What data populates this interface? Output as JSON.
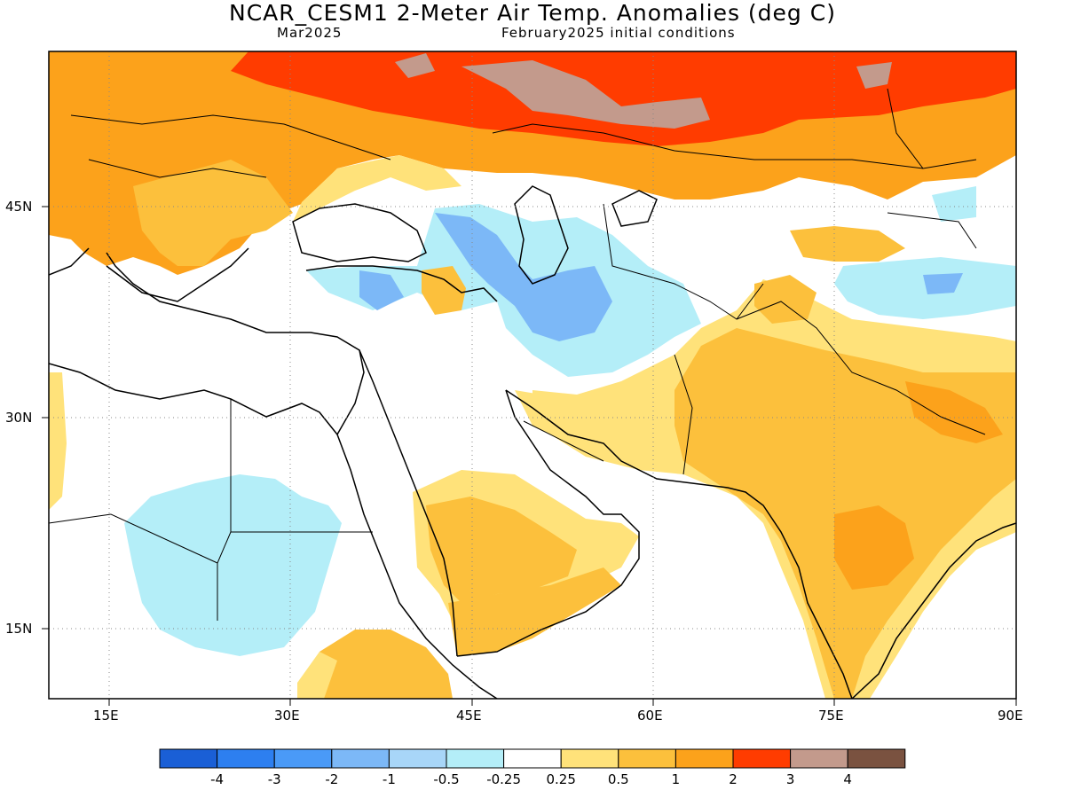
{
  "header": {
    "title": "NCAR_CESM1 2-Meter Air Temp. Anomalies (deg C)",
    "left_subtitle": "Mar2025",
    "right_subtitle": "February2025 initial conditions"
  },
  "axes": {
    "lat_labels": [
      "45N",
      "30N",
      "15N"
    ],
    "lon_labels": [
      "15E",
      "30E",
      "45E",
      "60E",
      "75E",
      "90E"
    ]
  },
  "colorbar": {
    "colors": [
      "#1a5fd6",
      "#2d7ff0",
      "#4a9af7",
      "#7cb8f7",
      "#a8d6f8",
      "#b4eef8",
      "#ffffff",
      "#ffe27a",
      "#fcc03c",
      "#fca21b",
      "#ff3c00",
      "#c39a8c",
      "#7a5240"
    ],
    "labels": [
      "-4",
      "-3",
      "-2",
      "-1",
      "-0.5",
      "-0.25",
      "0.25",
      "0.5",
      "1",
      "2",
      "3",
      "4"
    ]
  }
}
